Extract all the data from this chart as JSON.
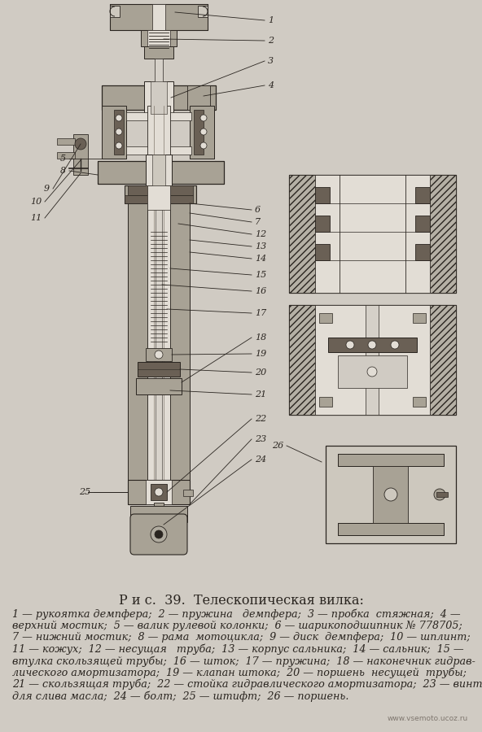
{
  "background_color": "#d0cbc3",
  "title": "Р и с.  39.  Телескопическая вилка:",
  "title_fontsize": 11.5,
  "caption_lines": [
    "1 — рукоятка демпфера;  2 — пружина   демпфера;  3 — пробка  стяжная;  4 —",
    "верхний мостик;  5 — валик рулевой колонки;  6 — шарикоподшипник № 778705;",
    "7 — нижний мостик;  8 — рама  мотоцикла;  9 — диск  демпфера;  10 — шплинт;",
    "11 — кожух;  12 — несущая   труба;  13 — корпус сальника;  14 — сальник;  15 —",
    "втулка скользящей трубы;  16 — шток;  17 — пружина;  18 — наконечник гидрав-",
    "лического амортизатора;  19 — клапан штока;  20 — поршень  несущей  трубы;",
    "21 — скользящая труба;  22 — стойка гидравлического амортизатора;  23 — винт",
    "для слива масла;  24 — болт;  25 — штифт;  26 — поршень."
  ],
  "caption_fontsize": 9.2,
  "watermark": "www.vsemoto.ucoz.ru",
  "bg_paper": "#cdc8be",
  "c_dark": "#2a2520",
  "c_mid": "#6a6055",
  "c_light": "#a8a295",
  "c_white": "#e2ddd5",
  "c_hatch": "#4a4035"
}
